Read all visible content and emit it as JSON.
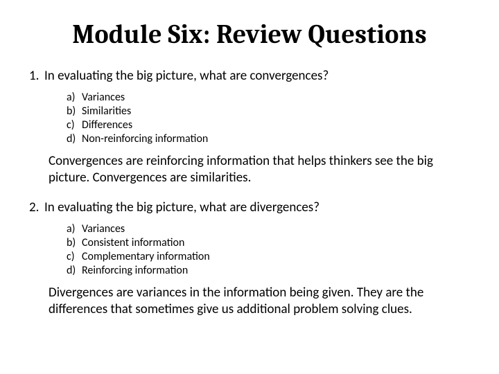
{
  "title": "Module Six: Review Questions",
  "title_fontsize": 38,
  "title_font": "Cambria",
  "body_font": "Calibri",
  "question_fontsize": 19,
  "option_fontsize": 16,
  "answer_fontsize": 19,
  "text_color": "#000000",
  "background_color": "#ffffff",
  "questions": [
    {
      "number": "1.",
      "text": "In evaluating the big picture, what are convergences?",
      "options": [
        {
          "label": "a)",
          "text": "Variances"
        },
        {
          "label": "b)",
          "text": "Similarities"
        },
        {
          "label": "c)",
          "text": "Differences"
        },
        {
          "label": "d)",
          "text": "Non-reinforcing information"
        }
      ],
      "answer": "Convergences are reinforcing information that helps thinkers see the big picture. Convergences are similarities."
    },
    {
      "number": "2.",
      "text": "In evaluating the big picture, what are divergences?",
      "options": [
        {
          "label": "a)",
          "text": "Variances"
        },
        {
          "label": "b)",
          "text": "Consistent information"
        },
        {
          "label": "c)",
          "text": "Complementary information"
        },
        {
          "label": "d)",
          "text": "Reinforcing information"
        }
      ],
      "answer": "Divergences are variances in the information being given. They are the differences that sometimes give us additional problem solving clues."
    }
  ]
}
